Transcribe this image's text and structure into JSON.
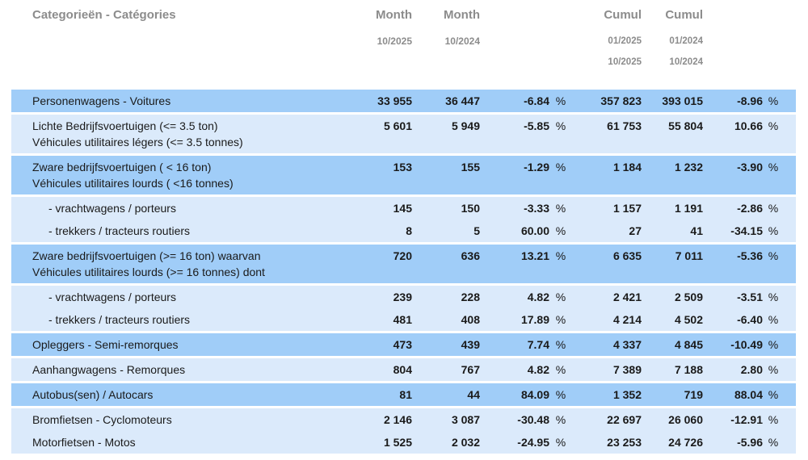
{
  "header": {
    "category_label": "Categorieën - Catégories",
    "month1": {
      "label": "Month",
      "date": "10/2025"
    },
    "month2": {
      "label": "Month",
      "date": "10/2024"
    },
    "cumul1": {
      "label": "Cumul",
      "date_from": "01/2025",
      "date_to": "10/2025"
    },
    "cumul2": {
      "label": "Cumul",
      "date_from": "01/2024",
      "date_to": "10/2024"
    }
  },
  "table": {
    "percent_sign": "%",
    "columns_meaning": [
      "category",
      "month 10/2025",
      "month 10/2024",
      "month % change",
      "cumul 01/2025-10/2025",
      "cumul 01/2024-10/2024",
      "cumul % change"
    ],
    "rows": [
      {
        "category": [
          "Personenwagens - Voitures"
        ],
        "shade": "dark",
        "indent": false,
        "month1": "33 955",
        "month2": "36 447",
        "month_pct": "-6.84",
        "cumul1": "357 823",
        "cumul2": "393 015",
        "cumul_pct": "-8.96"
      },
      {
        "category": [
          "Lichte Bedrijfsvoertuigen (<= 3.5 ton)",
          "Véhicules utilitaires légers (<= 3.5 tonnes)"
        ],
        "shade": "light",
        "indent": false,
        "month1": "5 601",
        "month2": "5 949",
        "month_pct": "-5.85",
        "cumul1": "61 753",
        "cumul2": "55 804",
        "cumul_pct": "10.66"
      },
      {
        "category": [
          "Zware bedrijfsvoertuigen ( < 16 ton)",
          "Véhicules utilitaires lourds ( <16 tonnes)"
        ],
        "shade": "dark",
        "indent": false,
        "month1": "153",
        "month2": "155",
        "month_pct": "-1.29",
        "cumul1": "1 184",
        "cumul2": "1 232",
        "cumul_pct": "-3.90"
      },
      {
        "category": [
          "- vrachtwagens / porteurs"
        ],
        "shade": "light",
        "indent": true,
        "month1": "145",
        "month2": "150",
        "month_pct": "-3.33",
        "cumul1": "1 157",
        "cumul2": "1 191",
        "cumul_pct": "-2.86"
      },
      {
        "category": [
          "- trekkers / tracteurs routiers"
        ],
        "shade": "light",
        "indent": true,
        "month1": "8",
        "month2": "5",
        "month_pct": "60.00",
        "cumul1": "27",
        "cumul2": "41",
        "cumul_pct": "-34.15"
      },
      {
        "category": [
          "Zware bedrijfsvoertuigen (>= 16 ton) waarvan",
          "Véhicules utilitaires lourds (>= 16 tonnes) dont"
        ],
        "shade": "dark",
        "indent": false,
        "month1": "720",
        "month2": "636",
        "month_pct": "13.21",
        "cumul1": "6 635",
        "cumul2": "7 011",
        "cumul_pct": "-5.36"
      },
      {
        "category": [
          "- vrachtwagens / porteurs"
        ],
        "shade": "light",
        "indent": true,
        "month1": "239",
        "month2": "228",
        "month_pct": "4.82",
        "cumul1": "2 421",
        "cumul2": "2 509",
        "cumul_pct": "-3.51"
      },
      {
        "category": [
          "- trekkers / tracteurs routiers"
        ],
        "shade": "light",
        "indent": true,
        "month1": "481",
        "month2": "408",
        "month_pct": "17.89",
        "cumul1": "4 214",
        "cumul2": "4 502",
        "cumul_pct": "-6.40"
      },
      {
        "category": [
          "Opleggers - Semi-remorques"
        ],
        "shade": "dark",
        "indent": false,
        "month1": "473",
        "month2": "439",
        "month_pct": "7.74",
        "cumul1": "4 337",
        "cumul2": "4 845",
        "cumul_pct": "-10.49"
      },
      {
        "category": [
          "Aanhangwagens - Remorques"
        ],
        "shade": "light",
        "indent": false,
        "month1": "804",
        "month2": "767",
        "month_pct": "4.82",
        "cumul1": "7 389",
        "cumul2": "7 188",
        "cumul_pct": "2.80"
      },
      {
        "category": [
          "Autobus(sen) / Autocars"
        ],
        "shade": "dark",
        "indent": false,
        "month1": "81",
        "month2": "44",
        "month_pct": "84.09",
        "cumul1": "1 352",
        "cumul2": "719",
        "cumul_pct": "88.04"
      },
      {
        "category": [
          "Bromfietsen - Cyclomoteurs"
        ],
        "shade": "light",
        "indent": false,
        "month1": "2 146",
        "month2": "3 087",
        "month_pct": "-30.48",
        "cumul1": "22 697",
        "cumul2": "26 060",
        "cumul_pct": "-12.91"
      },
      {
        "category": [
          "Motorfietsen - Motos"
        ],
        "shade": "light",
        "indent": false,
        "month1": "1 525",
        "month2": "2 032",
        "month_pct": "-24.95",
        "cumul1": "23 253",
        "cumul2": "24 726",
        "cumul_pct": "-5.96"
      }
    ]
  },
  "colors": {
    "row_dark": "#A0CDF8",
    "row_light": "#DBEAFB",
    "header_text": "#8C8C8C",
    "body_text": "#1A1A1A",
    "separator": "#FFFFFF"
  }
}
